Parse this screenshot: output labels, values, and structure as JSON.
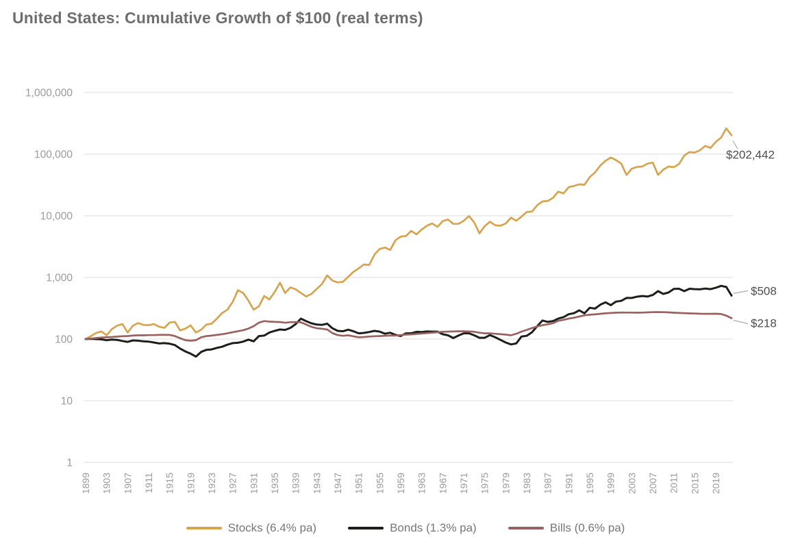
{
  "title": "United States: Cumulative Growth of $100 (real terms)",
  "colors": {
    "stocks": "#D6A44F",
    "bonds": "#1D1D1B",
    "bills": "#986260",
    "grid": "#E8E8E8",
    "axis_text": "#9B9B9B",
    "end_label_text": "#4C4C4C",
    "legend_text": "#777777",
    "leader_line": "#B3B3B3",
    "title_text": "#6E6E6E"
  },
  "y_axis": {
    "scale": "log",
    "ticks": [
      {
        "label": "1,000,000",
        "value": 1000000
      },
      {
        "label": "100,000",
        "value": 100000
      },
      {
        "label": "10,000",
        "value": 10000
      },
      {
        "label": "1,000",
        "value": 1000
      },
      {
        "label": "100",
        "value": 100
      },
      {
        "label": "10",
        "value": 10
      },
      {
        "label": "1",
        "value": 1
      }
    ]
  },
  "x_axis": {
    "tick_years": [
      1899,
      1903,
      1907,
      1911,
      1915,
      1919,
      1923,
      1927,
      1931,
      1935,
      1939,
      1943,
      1947,
      1951,
      1955,
      1959,
      1963,
      1967,
      1971,
      1975,
      1979,
      1983,
      1987,
      1991,
      1995,
      1999,
      2003,
      2007,
      2011,
      2015,
      2019
    ]
  },
  "chart_data": {
    "type": "line",
    "title": "United States: Cumulative Growth of $100 (real terms)",
    "x_start": 1899,
    "x_end": 2022,
    "x_step": 1,
    "ylim": [
      1,
      1000000
    ],
    "y_scale": "log",
    "grid": "horizontal-only",
    "legend_position": "bottom",
    "start_value": 100,
    "series": [
      {
        "key": "stocks",
        "name": "Stocks (6.4% pa)",
        "color": "#D6A44F",
        "end_label": "$202,442",
        "end_value": 202442,
        "values": [
          100,
          112,
          126,
          133,
          115,
          145,
          165,
          175,
          128,
          165,
          182,
          170,
          168,
          175,
          158,
          152,
          185,
          190,
          138,
          148,
          167,
          128,
          142,
          172,
          178,
          215,
          265,
          300,
          400,
          620,
          560,
          420,
          300,
          341,
          500,
          440,
          580,
          820,
          560,
          690,
          640,
          560,
          490,
          540,
          650,
          780,
          1080,
          890,
          830,
          850,
          1020,
          1230,
          1400,
          1620,
          1590,
          2350,
          2900,
          3050,
          2800,
          4000,
          4600,
          4700,
          5700,
          5000,
          6000,
          6900,
          7500,
          6600,
          8200,
          8700,
          7400,
          7400,
          8300,
          9900,
          7800,
          5200,
          6800,
          8000,
          7000,
          6900,
          7500,
          9300,
          8300,
          9700,
          11500,
          11700,
          14800,
          17100,
          17400,
          19500,
          24600,
          23000,
          29100,
          30400,
          32400,
          31900,
          42400,
          50500,
          65000,
          78000,
          88000,
          80000,
          70000,
          46000,
          58000,
          62000,
          63000,
          70000,
          73000,
          46000,
          56000,
          63000,
          61500,
          69000,
          95000,
          108000,
          106000,
          116000,
          136000,
          126000,
          158000,
          185000,
          262000,
          202442
        ]
      },
      {
        "key": "bonds",
        "name": "Bonds (1.3% pa)",
        "color": "#1D1D1B",
        "end_label": "$508",
        "end_value": 508,
        "values": [
          100,
          101,
          100,
          99,
          96,
          98,
          97,
          93,
          90,
          95,
          94,
          92,
          91,
          88,
          85,
          86,
          84,
          80,
          70,
          63,
          58,
          52,
          62,
          67,
          68,
          72,
          75,
          81,
          86,
          87,
          91,
          98,
          92,
          112,
          114,
          128,
          136,
          143,
          141,
          152,
          175,
          215,
          195,
          180,
          172,
          170,
          178,
          150,
          136,
          134,
          142,
          134,
          124,
          126,
          130,
          136,
          132,
          122,
          127,
          117,
          112,
          124,
          124,
          131,
          130,
          133,
          132,
          132,
          120,
          115,
          104,
          114,
          124,
          124,
          115,
          105,
          105,
          116,
          107,
          97,
          88,
          82,
          85,
          110,
          113,
          129,
          162,
          200,
          190,
          196,
          215,
          227,
          253,
          263,
          293,
          262,
          322,
          312,
          360,
          395,
          355,
          405,
          417,
          465,
          464,
          487,
          500,
          490,
          520,
          600,
          540,
          570,
          650,
          655,
          600,
          655,
          645,
          640,
          660,
          645,
          680,
          730,
          700,
          508
        ]
      },
      {
        "key": "bills",
        "name": "Bills (0.6% pa)",
        "color": "#986260",
        "end_label": "$218",
        "end_value": 218,
        "values": [
          100,
          102,
          104,
          106,
          107,
          108,
          110,
          111,
          112,
          114,
          115,
          115,
          116,
          116,
          117,
          117,
          117,
          112,
          103,
          96,
          94,
          96,
          107,
          112,
          114,
          117,
          120,
          124,
          129,
          134,
          139,
          148,
          162,
          185,
          196,
          192,
          190,
          189,
          184,
          188,
          189,
          187,
          172,
          158,
          150,
          147,
          143,
          125,
          116,
          113,
          115,
          111,
          107,
          108,
          110,
          111,
          112,
          113,
          114,
          114,
          116,
          118,
          119,
          121,
          123,
          125,
          127,
          129,
          131,
          132,
          133,
          134,
          134,
          133,
          131,
          127,
          124,
          124,
          122,
          120,
          118,
          115,
          122,
          132,
          141,
          151,
          160,
          168,
          174,
          181,
          198,
          205,
          215,
          222,
          232,
          243,
          248,
          252,
          257,
          262,
          265,
          268,
          270,
          269,
          269,
          268,
          269,
          271,
          273,
          274,
          273,
          271,
          268,
          265,
          263,
          261,
          260,
          258,
          257,
          257,
          258,
          255,
          240,
          218
        ]
      }
    ]
  }
}
